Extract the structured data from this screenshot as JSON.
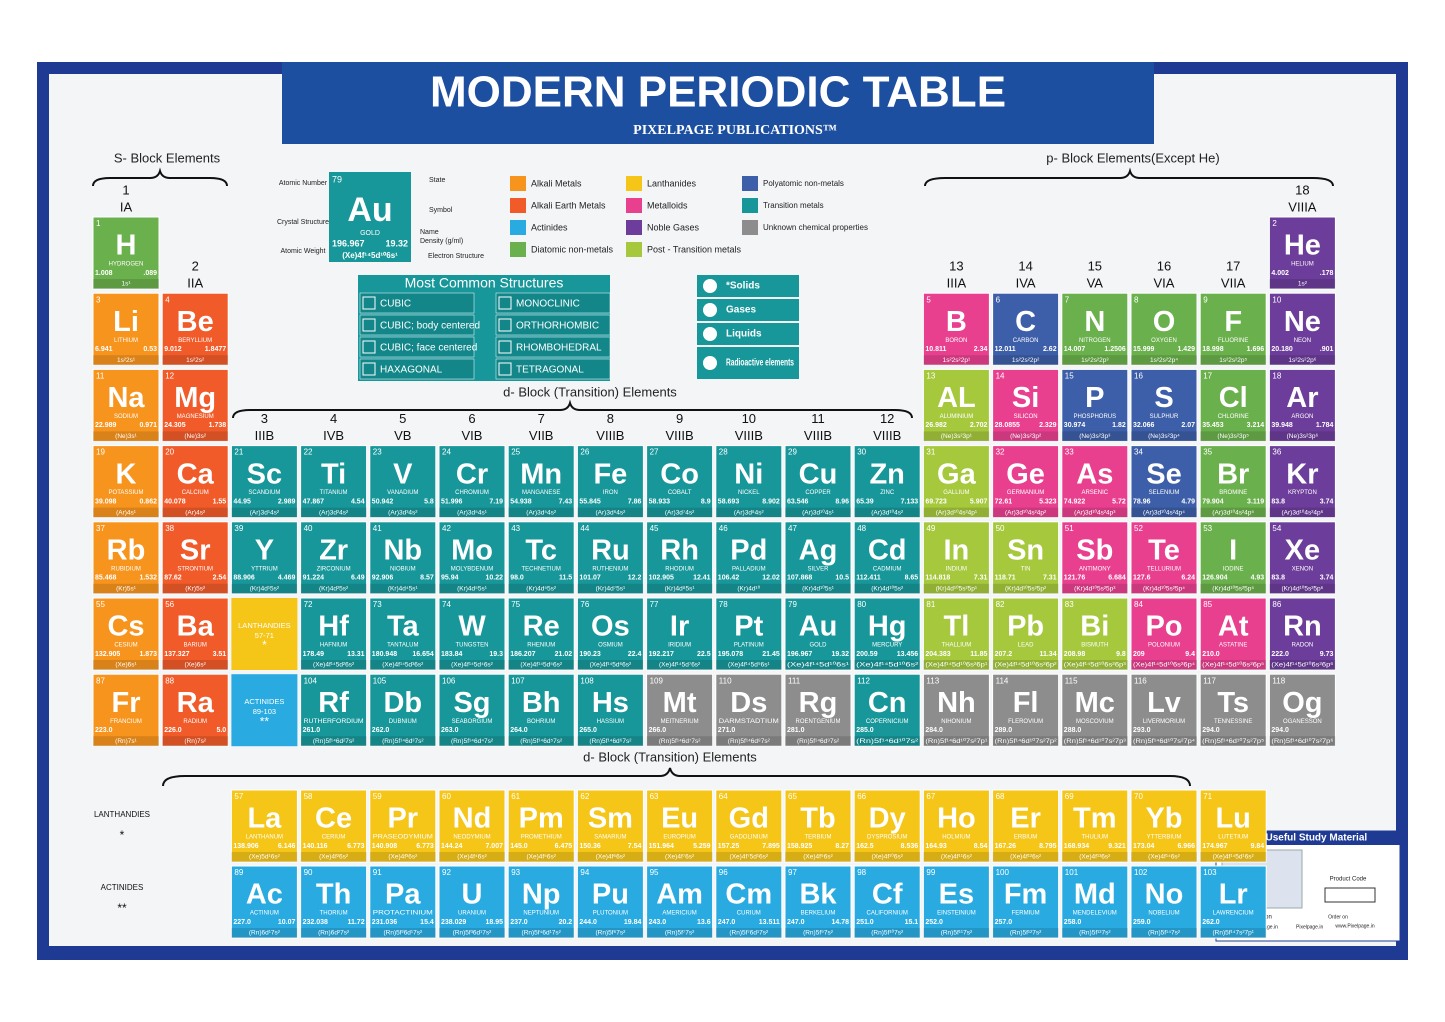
{
  "header": {
    "title": "MODERN PERIODIC TABLE",
    "publisher": "PIXELPAGE PUBLICATIONS™"
  },
  "block_labels": {
    "s": "S- Block Elements",
    "p": "p- Block Elements(Except He)",
    "d": "d- Block (Transition) Elements",
    "f": "d- Block (Transition) Elements"
  },
  "group_headers": [
    {
      "number": "1",
      "label": "IA"
    },
    {
      "number": "2",
      "label": "IIA"
    },
    {
      "number": "3",
      "label": "IIIB"
    },
    {
      "number": "4",
      "label": "IVB"
    },
    {
      "number": "5",
      "label": "VB"
    },
    {
      "number": "6",
      "label": "VIB"
    },
    {
      "number": "7",
      "label": "VIIB"
    },
    {
      "number": "8",
      "label": "VIIIB"
    },
    {
      "number": "9",
      "label": "VIIIB"
    },
    {
      "number": "10",
      "label": "VIIIB"
    },
    {
      "number": "11",
      "label": "VIIIB"
    },
    {
      "number": "12",
      "label": "VIIIB"
    },
    {
      "number": "13",
      "label": "IIIA"
    },
    {
      "number": "14",
      "label": "IVA"
    },
    {
      "number": "15",
      "label": "VA"
    },
    {
      "number": "16",
      "label": "VIA"
    },
    {
      "number": "17",
      "label": "VIIA"
    },
    {
      "number": "18",
      "label": "VIIIA"
    }
  ],
  "key": {
    "labels": [
      "Atomic Number",
      "State",
      "Symbol",
      "Crystal Structure",
      "Name",
      "Density (g/ml)",
      "Atomic Weight",
      "Electron Structure"
    ],
    "sample": [
      "79",
      "Au",
      "GOLD",
      "196.967",
      "19.32",
      "(Xe)4f¹⁴5d¹⁰6s¹"
    ]
  },
  "structures": {
    "title": "Most Common Structures",
    "items": [
      "CUBIC",
      "MONOCLINIC",
      "CUBIC; body centered",
      "ORTHORHOMBIC",
      "CUBIC; face centered",
      "RHOMBOHEDRAL",
      "HAXAGONAL",
      "TETRAGONAL"
    ]
  },
  "states": [
    "*Solids",
    "Gases",
    "Liquids",
    "Radioactive elements"
  ],
  "placeholders": {
    "lanthanides": [
      "LANTHANDIES",
      "57-71",
      "*"
    ],
    "actinides": [
      "ACTINIDES",
      "89-103",
      "**"
    ]
  },
  "row_labels": {
    "lanthanides": [
      "LANTHANDIES",
      "*"
    ],
    "actinides": [
      "ACTINIDES",
      "**"
    ]
  },
  "promo": {
    "title": "More Useful Study Material",
    "code": "Product Code",
    "follow": "Follow us on",
    "social": [
      "@PixelPage.in",
      "Pixelpage.in"
    ],
    "order": "Order on",
    "site": "www.Pixelpage.in"
  },
  "groups": [
    {
      "label": "Alkali Metals",
      "color": "#f7941d",
      "elements": [
        [
          3,
          "Li",
          "LITHIUM",
          "6.941",
          "0.53",
          "1s²2s¹"
        ],
        [
          11,
          "Na",
          "SODIUM",
          "22.989",
          "0.971",
          "(Ne)3s¹"
        ],
        [
          19,
          "K",
          "POTASSIUM",
          "39.098",
          "0.862",
          "(Ar)4s¹"
        ],
        [
          37,
          "Rb",
          "RUBIDIUM",
          "85.468",
          "1.532",
          "(Kr)5s¹"
        ],
        [
          55,
          "Cs",
          "CESIUM",
          "132.905",
          "1.873",
          "(Xe)6s¹"
        ],
        [
          87,
          "Fr",
          "FRANCIUM",
          "223.0",
          null,
          "(Rn)7s¹"
        ]
      ]
    },
    {
      "label": "Alkali Earth Metals",
      "color": "#f15a29",
      "elements": [
        [
          4,
          "Be",
          "BERYLLIUM",
          "9.012",
          "1.8477",
          "1s²2s²"
        ],
        [
          12,
          "Mg",
          "MAGNESIUM",
          "24.305",
          "1.738",
          "(Ne)3s²"
        ],
        [
          20,
          "Ca",
          "CALCIUM",
          "40.078",
          "1.55",
          "(Ar)4s²"
        ],
        [
          38,
          "Sr",
          "STRONTIUM",
          "87.62",
          "2.54",
          "(Kr)5s²"
        ],
        [
          56,
          "Ba",
          "BARIUM",
          "137.327",
          "3.51",
          "(Xe)6s²"
        ],
        [
          88,
          "Ra",
          "RADIUM",
          "226.0",
          "5.0",
          "(Rn)7s²"
        ]
      ]
    },
    {
      "label": "Actinides",
      "color": "#29abe2",
      "elements": [
        [
          89,
          "Ac",
          "ACTINIUM",
          "227.0",
          "10.07",
          "(Rn)6d¹7s²"
        ],
        [
          90,
          "Th",
          "THORIUM",
          "232.038",
          "11.72",
          "(Rn)6d²7s²"
        ],
        [
          91,
          "Pa",
          "PROTACTINIUM",
          "231.036",
          "15.4",
          "(Rn)5f²6d¹7s²"
        ],
        [
          92,
          "U",
          "URANIUM",
          "238.029",
          "18.95",
          "(Rn)5f³6d¹7s²"
        ],
        [
          93,
          "Np",
          "NEPTUNIUM",
          "237.0",
          "20.2",
          "(Rn)5f⁴6d¹7s²"
        ],
        [
          94,
          "Pu",
          "PLUTONIUM",
          "244.0",
          "19.84",
          "(Rn)5f⁶7s²"
        ],
        [
          95,
          "Am",
          "AMERICIUM",
          "243.0",
          "13.6",
          "(Rn)5f⁷7s²"
        ],
        [
          96,
          "Cm",
          "CURIUM",
          "247.0",
          "13.511",
          "(Rn)5f⁷6d¹7s²"
        ],
        [
          97,
          "Bk",
          "BERKELIUM",
          "247.0",
          "14.78",
          "(Rn)5f⁹7s²"
        ],
        [
          98,
          "Cf",
          "CALIFORNIUM",
          "251.0",
          "15.1",
          "(Rn)5f¹⁰7s²"
        ],
        [
          99,
          "Es",
          "EINSTEINIUM",
          "252.0",
          null,
          "(Rn)5f¹¹7s²"
        ],
        [
          100,
          "Fm",
          "FERMIUM",
          "257.0",
          null,
          "(Rn)5f¹²7s²"
        ],
        [
          101,
          "Md",
          "MENDELEVIUM",
          "258.0",
          null,
          "(Rn)5f¹³7s²"
        ],
        [
          102,
          "No",
          "NOBELIUM",
          "259.0",
          null,
          "(Rn)5f¹⁴7s²"
        ],
        [
          103,
          "Lr",
          "LAWRENCIUM",
          "262.0",
          null,
          "(Rn)5f¹⁴7s²7p¹"
        ]
      ]
    },
    {
      "label": "Diatomic non-metals",
      "color": "#6ab04c",
      "elements": [
        [
          1,
          "H",
          "HYDROGEN",
          "1.008",
          ".089",
          "1s¹"
        ],
        [
          7,
          "N",
          "NITROGEN",
          "14.007",
          "1.2506",
          "1s²2s²2p³"
        ],
        [
          8,
          "O",
          "OXYGEN",
          "15.999",
          "1.429",
          "1s²2s²2p⁴"
        ],
        [
          9,
          "F",
          "FLUORINE",
          "18.998",
          "1.696",
          "1s²2s²2p⁵"
        ],
        [
          17,
          "Cl",
          "CHLORINE",
          "35.453",
          "3.214",
          "(Ne)3s²3p⁵"
        ],
        [
          35,
          "Br",
          "BROMINE",
          "79.904",
          "3.119",
          "(Ar)3d¹⁰4s²4p⁵"
        ],
        [
          53,
          "I",
          "IODINE",
          "126.904",
          "4.93",
          "(Kr)4d¹⁰5s²5p⁵"
        ]
      ]
    },
    {
      "label": "Lanthanides",
      "color": "#f5c518",
      "elements": [
        [
          57,
          "La",
          "LANTHANUM",
          "138.906",
          "6.146",
          "(Xe)5d¹6s²"
        ],
        [
          58,
          "Ce",
          "CERIUM",
          "140.116",
          "6.773",
          "(Xe)4f²6s²"
        ],
        [
          59,
          "Pr",
          "PRASEODYMIUM",
          "140.908",
          "6.773",
          "(Xe)4f³6s²"
        ],
        [
          60,
          "Nd",
          "NEODYMIUM",
          "144.24",
          "7.007",
          "(Xe)4f⁴6s²"
        ],
        [
          61,
          "Pm",
          "PROMETHIUM",
          "145.0",
          "6.475",
          "(Xe)4f⁵6s²"
        ],
        [
          62,
          "Sm",
          "SAMARIUM",
          "150.36",
          "7.54",
          "(Xe)4f⁶6s²"
        ],
        [
          63,
          "Eu",
          "EUROPIUM",
          "151.964",
          "5.259",
          "(Xe)4f⁷6s²"
        ],
        [
          64,
          "Gd",
          "GADOLINIUM",
          "157.25",
          "7.895",
          "(Xe)4f⁷5d¹6s²"
        ],
        [
          65,
          "Tb",
          "TERBIUM",
          "158.925",
          "8.27",
          "(Xe)4f⁹6s²"
        ],
        [
          66,
          "Dy",
          "DYSPROSIUM",
          "162.5",
          "8.536",
          "(Xe)4f¹⁰6s²"
        ],
        [
          67,
          "Ho",
          "HOLMIUM",
          "164.93",
          "8.54",
          "(Xe)4f¹¹6s²"
        ],
        [
          68,
          "Er",
          "ERBIUM",
          "167.26",
          "8.795",
          "(Xe)4f¹²6s²"
        ],
        [
          69,
          "Tm",
          "THULIUM",
          "168.934",
          "9.321",
          "(Xe)4f¹³6s²"
        ],
        [
          70,
          "Yb",
          "YTTERBIUM",
          "173.04",
          "6.966",
          "(Xe)4f¹⁴6s²"
        ],
        [
          71,
          "Lu",
          "LUTETIUM",
          "174.967",
          "9.84",
          "(Xe)4f¹⁴5d¹6s²"
        ]
      ]
    },
    {
      "label": "Metalloids",
      "color": "#e8408f",
      "elements": [
        [
          5,
          "B",
          "BORON",
          "10.811",
          "2.34",
          "1s²2s²2p¹"
        ],
        [
          14,
          "Si",
          "SILICON",
          "28.0855",
          "2.329",
          "(Ne)3s²3p²"
        ],
        [
          32,
          "Ge",
          "GERMANIUM",
          "72.61",
          "5.323",
          "(Ar)3d¹⁰4s²4p²"
        ],
        [
          33,
          "As",
          "ARSENIC",
          "74.922",
          "5.72",
          "(Ar)3d¹⁰4s²4p³"
        ],
        [
          51,
          "Sb",
          "ANTIMONY",
          "121.76",
          "6.684",
          "(Kr)4d¹⁰5s²5p³"
        ],
        [
          52,
          "Te",
          "TELLURIUM",
          "127.6",
          "6.24",
          "(Kr)4d¹⁰5s²5p⁴"
        ],
        [
          84,
          "Po",
          "POLONIUM",
          "209",
          "9.4",
          "(Xe)4f¹⁴5d¹⁰6s²6p⁴"
        ],
        [
          85,
          "At",
          "ASTATINE",
          "210.0",
          null,
          "(Xe)4f¹⁴5d¹⁰6s²6p⁵"
        ]
      ]
    },
    {
      "label": "Noble Gases",
      "color": "#6c3d9a",
      "elements": [
        [
          2,
          "He",
          "HELIUM",
          "4.002",
          ".178",
          "1s²"
        ],
        [
          10,
          "Ne",
          "NEON",
          "20.180",
          ".901",
          "1s²2s²2p⁶"
        ],
        [
          18,
          "Ar",
          "ARGON",
          "39.948",
          "1.784",
          "(Ne)3s²3p⁶"
        ],
        [
          36,
          "Kr",
          "KRYPTON",
          "83.8",
          "3.74",
          "(Ar)3d¹⁰4s²4p⁶"
        ],
        [
          54,
          "Xe",
          "XENON",
          "83.8",
          "3.74",
          "(Kr)4d¹⁰5s²5p⁶"
        ],
        [
          86,
          "Rn",
          "RADON",
          "222.0",
          "9.73",
          "(Xe)4f¹⁴5d¹⁰6s²6p⁶"
        ]
      ]
    },
    {
      "label": "Post - Transition metals",
      "color": "#a6c83d",
      "elements": [
        [
          13,
          "AL",
          "ALUMINIUM",
          "26.982",
          "2.702",
          "(Ne)3s²3p¹"
        ],
        [
          31,
          "Ga",
          "GALLIUM",
          "69.723",
          "5.907",
          "(Ar)3d¹⁰4s²4p¹"
        ],
        [
          49,
          "In",
          "INDIUM",
          "114.818",
          "7.31",
          "(Kr)4d¹⁰5s²5p¹"
        ],
        [
          50,
          "Sn",
          "TIN",
          "118.71",
          "7.31",
          "(Kr)4d¹⁰5s²5p²"
        ],
        [
          81,
          "Tl",
          "THALLIUM",
          "204.383",
          "11.85",
          "(Xe)4f¹⁴5d¹⁰6s²6p¹"
        ],
        [
          82,
          "Pb",
          "LEAD",
          "207.2",
          "11.34",
          "(Xe)4f¹⁴5d¹⁰6s²6p²"
        ],
        [
          83,
          "Bi",
          "BISMUTH",
          "208.98",
          "9.8",
          "(Xe)4f¹⁴5d¹⁰6s²6p³"
        ]
      ]
    },
    {
      "label": "Polyatomic non-metals",
      "color": "#3d5ea8",
      "elements": [
        [
          6,
          "C",
          "CARBON",
          "12.011",
          "2.62",
          "1s²2s²2p²"
        ],
        [
          15,
          "P",
          "PHOSPHORUS",
          "30.974",
          "1.82",
          "(Ne)3s²3p³"
        ],
        [
          16,
          "S",
          "SULPHUR",
          "32.066",
          "2.07",
          "(Ne)3s²3p⁴"
        ],
        [
          34,
          "Se",
          "SELENIUM",
          "78.96",
          "4.79",
          "(Ar)3d¹⁰4s²4p⁴"
        ]
      ]
    },
    {
      "label": "Transition metals",
      "color": "#17979a",
      "elements": [
        [
          21,
          "Sc",
          "SCANDIUM",
          "44.95",
          "2.989",
          "(Ar)3d¹4s²"
        ],
        [
          22,
          "Ti",
          "TITANIUM",
          "47.867",
          "4.54",
          "(Ar)3d²4s²"
        ],
        [
          23,
          "V",
          "VANADIUM",
          "50.942",
          "5.8",
          "(Ar)3d³4s²"
        ],
        [
          24,
          "Cr",
          "CHROMIUM",
          "51.996",
          "7.19",
          "(Ar)3d⁵4s¹"
        ],
        [
          25,
          "Mn",
          "MANGANESE",
          "54.938",
          "7.43",
          "(Ar)3d⁵4s²"
        ],
        [
          26,
          "Fe",
          "IRON",
          "55.845",
          "7.86",
          "(Ar)3d⁶4s²"
        ],
        [
          27,
          "Co",
          "COBALT",
          "58.933",
          "8.9",
          "(Ar)3d⁷4s²"
        ],
        [
          28,
          "Ni",
          "NICKEL",
          "58.693",
          "8.902",
          "(Ar)3d⁸4s²"
        ],
        [
          29,
          "Cu",
          "COPPER",
          "63.546",
          "8.96",
          "(Ar)3d¹⁰4s¹"
        ],
        [
          30,
          "Zn",
          "ZINC",
          "65.39",
          "7.133",
          "(Ar)3d¹⁰4s²"
        ],
        [
          39,
          "Y",
          "YTTRIUM",
          "88.906",
          "4.469",
          "(Kr)4d¹5s²"
        ],
        [
          40,
          "Zr",
          "ZIRCONIUM",
          "91.224",
          "6.49",
          "(Kr)4d²5s²"
        ],
        [
          41,
          "Nb",
          "NIOBIUM",
          "92.906",
          "8.57",
          "(Kr)4d⁴5s¹"
        ],
        [
          42,
          "Mo",
          "MOLYBDENUM",
          "95.94",
          "10.22",
          "(Kr)4d⁵5s¹"
        ],
        [
          43,
          "Tc",
          "TECHNETIUM",
          "98.0",
          "11.5",
          "(Kr)4d⁵5s²"
        ],
        [
          44,
          "Ru",
          "RUTHENIUM",
          "101.07",
          "12.2",
          "(Kr)4d⁷5s¹"
        ],
        [
          45,
          "Rh",
          "RHODIUM",
          "102.905",
          "12.41",
          "(Kr)4d⁸5s¹"
        ],
        [
          46,
          "Pd",
          "PALLADIUM",
          "106.42",
          "12.02",
          "(Kr)4d¹⁰"
        ],
        [
          47,
          "Ag",
          "SILVER",
          "107.868",
          "10.5",
          "(Kr)4d¹⁰5s¹"
        ],
        [
          48,
          "Cd",
          "CADMIUM",
          "112.411",
          "8.65",
          "(Kr)4d¹⁰5s²"
        ],
        [
          72,
          "Hf",
          "HAFNIUM",
          "178.49",
          "13.31",
          "(Xe)4f¹⁴5d²6s²"
        ],
        [
          73,
          "Ta",
          "TANTALUM",
          "180.948",
          "16.654",
          "(Xe)4f¹⁴5d³6s²"
        ],
        [
          74,
          "W",
          "TUNGSTEN",
          "183.84",
          "19.3",
          "(Xe)4f¹⁴5d⁴6s²"
        ],
        [
          75,
          "Re",
          "RHENIUM",
          "186.207",
          "21.02",
          "(Xe)4f¹⁴5d⁵6s²"
        ],
        [
          76,
          "Os",
          "OSMIUM",
          "190.23",
          "22.4",
          "(Xe)4f¹⁴5d⁶6s²"
        ],
        [
          77,
          "Ir",
          "IRIDIUM",
          "192.217",
          "22.5",
          "(Xe)4f¹⁴5d⁷6s²"
        ],
        [
          78,
          "Pt",
          "PLATINUM",
          "195.078",
          "21.45",
          "(Xe)4f¹⁴5d⁹6s¹"
        ],
        [
          79,
          "Au",
          "GOLD",
          "196.967",
          "19.32",
          "(Xe)4f¹⁴5d¹⁰6s¹"
        ],
        [
          80,
          "Hg",
          "MERCURY",
          "200.59",
          "13.456",
          "(Xe)4f¹⁴5d¹⁰6s²"
        ],
        [
          104,
          "Rf",
          "RUTHERFORDIUM",
          "261.0",
          null,
          "(Rn)5f¹⁴6d²7s²"
        ],
        [
          105,
          "Db",
          "DUBNIUM",
          "262.0",
          null,
          "(Rn)5f¹⁴6d³7s²"
        ],
        [
          106,
          "Sg",
          "SEABORGIUM",
          "263.0",
          null,
          "(Rn)5f¹⁴6d⁴7s²"
        ],
        [
          107,
          "Bh",
          "BOHRIUM",
          "264.0",
          null,
          "(Rn)5f¹⁴6d⁵7s²"
        ],
        [
          108,
          "Hs",
          "HASSIUM",
          "265.0",
          null,
          "(Rn)5f¹⁴6d⁶7s²"
        ],
        [
          112,
          "Cn",
          "COPERNICIUM",
          "285.0",
          null,
          "(Rn)5f¹⁴6d¹⁰7s²"
        ]
      ]
    },
    {
      "label": "Unknown chemical properties",
      "color": "#8d8d8d",
      "elements": [
        [
          109,
          "Mt",
          "MEITNERIUM",
          "266.0",
          null,
          "(Rn)5f¹⁴6d⁷7s²"
        ],
        [
          110,
          "Ds",
          "DARMSTADTIUM",
          "271.0",
          null,
          "(Rn)5f¹⁴6d⁸7s²"
        ],
        [
          111,
          "Rg",
          "ROENTGENIUM",
          "281.0",
          null,
          "(Rn)5f¹⁴6d⁹7s²"
        ],
        [
          113,
          "Nh",
          "NIHONIUM",
          "284.0",
          null,
          "(Rn)5f¹⁴6d¹⁰7s²7p¹"
        ],
        [
          114,
          "Fl",
          "FLEROVIUM",
          "289.0",
          null,
          "(Rn)5f¹⁴6d¹⁰7s²7p²"
        ],
        [
          115,
          "Mc",
          "MOSCOVIUM",
          "288.0",
          null,
          "(Rn)5f¹⁴6d¹⁰7s²7p³"
        ],
        [
          116,
          "Lv",
          "LIVERMORIUM",
          "293.0",
          null,
          "(Rn)5f¹⁴6d¹⁰7s²7p⁴"
        ],
        [
          117,
          "Ts",
          "TENNESSINE",
          "294.0",
          null,
          "(Rn)5f¹⁴6d¹⁰7s²7p⁵"
        ],
        [
          118,
          "Og",
          "OGANESSON",
          "294.0",
          null,
          "(Rn)5f¹⁴6d¹⁰7s²7p⁶"
        ]
      ]
    }
  ]
}
